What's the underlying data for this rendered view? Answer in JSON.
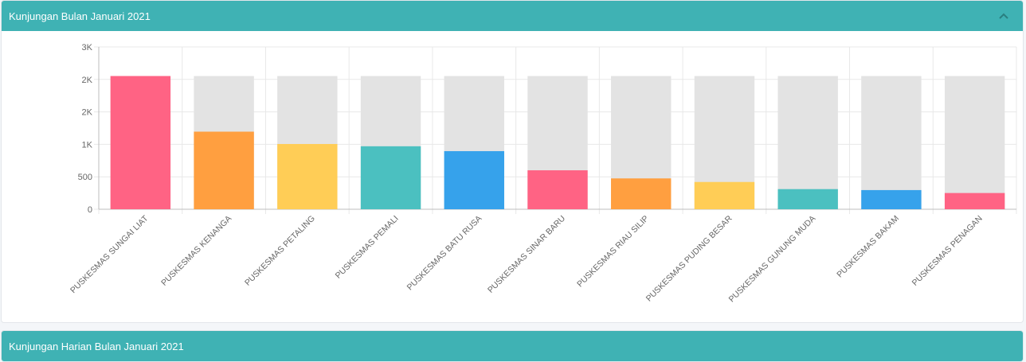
{
  "panels": {
    "monthly": {
      "title": "Kunjungan Bulan Januari 2021"
    },
    "daily": {
      "title": "Kunjungan Harian Bulan Januari 2021"
    }
  },
  "icons": {
    "collapse": "chevron-up-icon"
  },
  "colors": {
    "header": "#3fb2b4",
    "track": "#e3e3e3",
    "palette": [
      "#ff6384",
      "#ff9f40",
      "#ffcd56",
      "#4bc0c0",
      "#36a2eb"
    ]
  },
  "chart_data": {
    "type": "bar",
    "categories": [
      "PUSKESMAS SUNGAI LIAT",
      "PUSKESMAS KENANGA",
      "PUSKESMAS PETALING",
      "PUSKESMAS PEMALI",
      "PUSKESMAS BATU RUSA",
      "PUSKESMAS SINAR BARU",
      "PUSKESMAS RIAU SILIP",
      "PUSKESMAS PUDING BESAR",
      "PUSKESMAS GUNUNG MUDA",
      "PUSKESMAS BAKAM",
      "PUSKESMAS PENAGAN"
    ],
    "values": [
      2052,
      1195,
      1005,
      970,
      895,
      600,
      475,
      420,
      310,
      295,
      250
    ],
    "background_max": 2052,
    "yticks": [
      {
        "value": 0,
        "label": "0"
      },
      {
        "value": 500,
        "label": "500"
      },
      {
        "value": 1000,
        "label": "1K"
      },
      {
        "value": 1500,
        "label": "2K"
      },
      {
        "value": 2000,
        "label": "2K"
      },
      {
        "value": 2500,
        "label": "3K"
      }
    ],
    "ylim": [
      0,
      2500
    ],
    "grid": true,
    "legend": "none"
  }
}
